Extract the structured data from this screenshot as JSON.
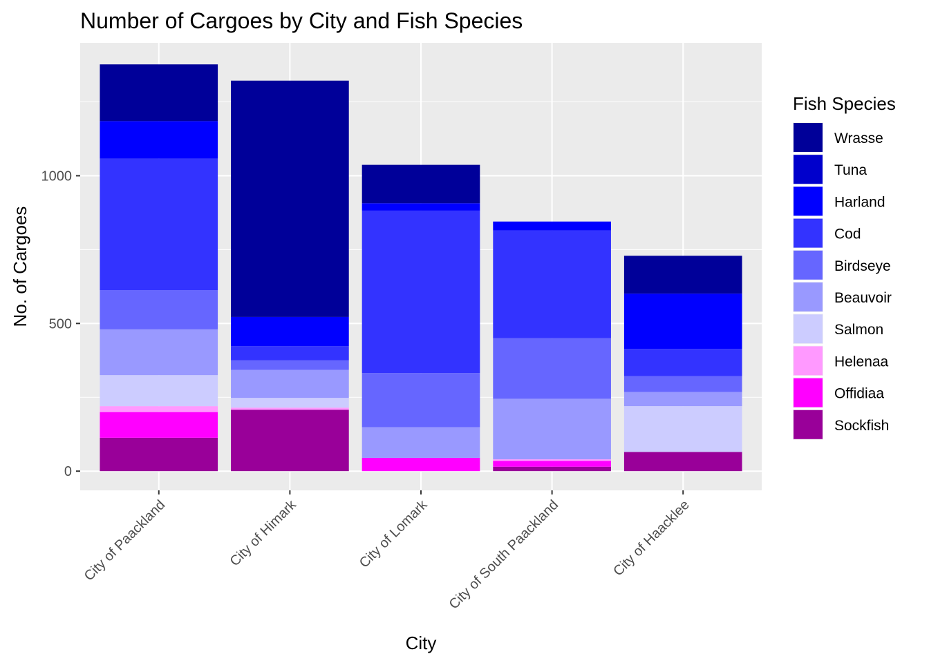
{
  "chart_data": {
    "type": "bar",
    "stacked": true,
    "title": "Number of Cargoes by City and Fish Species",
    "xlabel": "City",
    "ylabel": "No. of Cargoes",
    "ylim": [
      -65,
      1450
    ],
    "yticks": [
      0,
      500,
      1000
    ],
    "grid": true,
    "legend_position": "right",
    "legend_title": "Fish Species",
    "categories": [
      "City of Paackland",
      "City of Himark",
      "City of Lomark",
      "City of South Paackland",
      "City of Haacklee"
    ],
    "series": [
      {
        "name": "Sockfish",
        "color": "#990099",
        "values": [
          113,
          208,
          0,
          15,
          65
        ]
      },
      {
        "name": "Offidiaa",
        "color": "#ff00ff",
        "values": [
          87,
          0,
          45,
          20,
          0
        ]
      },
      {
        "name": "Helenaa",
        "color": "#ff99ff",
        "values": [
          20,
          7,
          0,
          5,
          0
        ]
      },
      {
        "name": "Salmon",
        "color": "#ccccff",
        "values": [
          105,
          33,
          0,
          0,
          155
        ]
      },
      {
        "name": "Beauvoir",
        "color": "#9999ff",
        "values": [
          155,
          95,
          104,
          205,
          48
        ]
      },
      {
        "name": "Birdseye",
        "color": "#6666ff",
        "values": [
          133,
          32,
          183,
          205,
          54
        ]
      },
      {
        "name": "Cod",
        "color": "#3333ff",
        "values": [
          445,
          48,
          550,
          365,
          92
        ]
      },
      {
        "name": "Harland",
        "color": "#0000ff",
        "values": [
          127,
          99,
          25,
          30,
          187
        ]
      },
      {
        "name": "Tuna",
        "color": "#0000cc",
        "values": [
          0,
          0,
          0,
          0,
          0
        ]
      },
      {
        "name": "Wrasse",
        "color": "#000099",
        "values": [
          192,
          800,
          130,
          0,
          128
        ]
      }
    ],
    "legend_order": [
      "Wrasse",
      "Tuna",
      "Harland",
      "Cod",
      "Birdseye",
      "Beauvoir",
      "Salmon",
      "Helenaa",
      "Offidiaa",
      "Sockfish"
    ]
  }
}
